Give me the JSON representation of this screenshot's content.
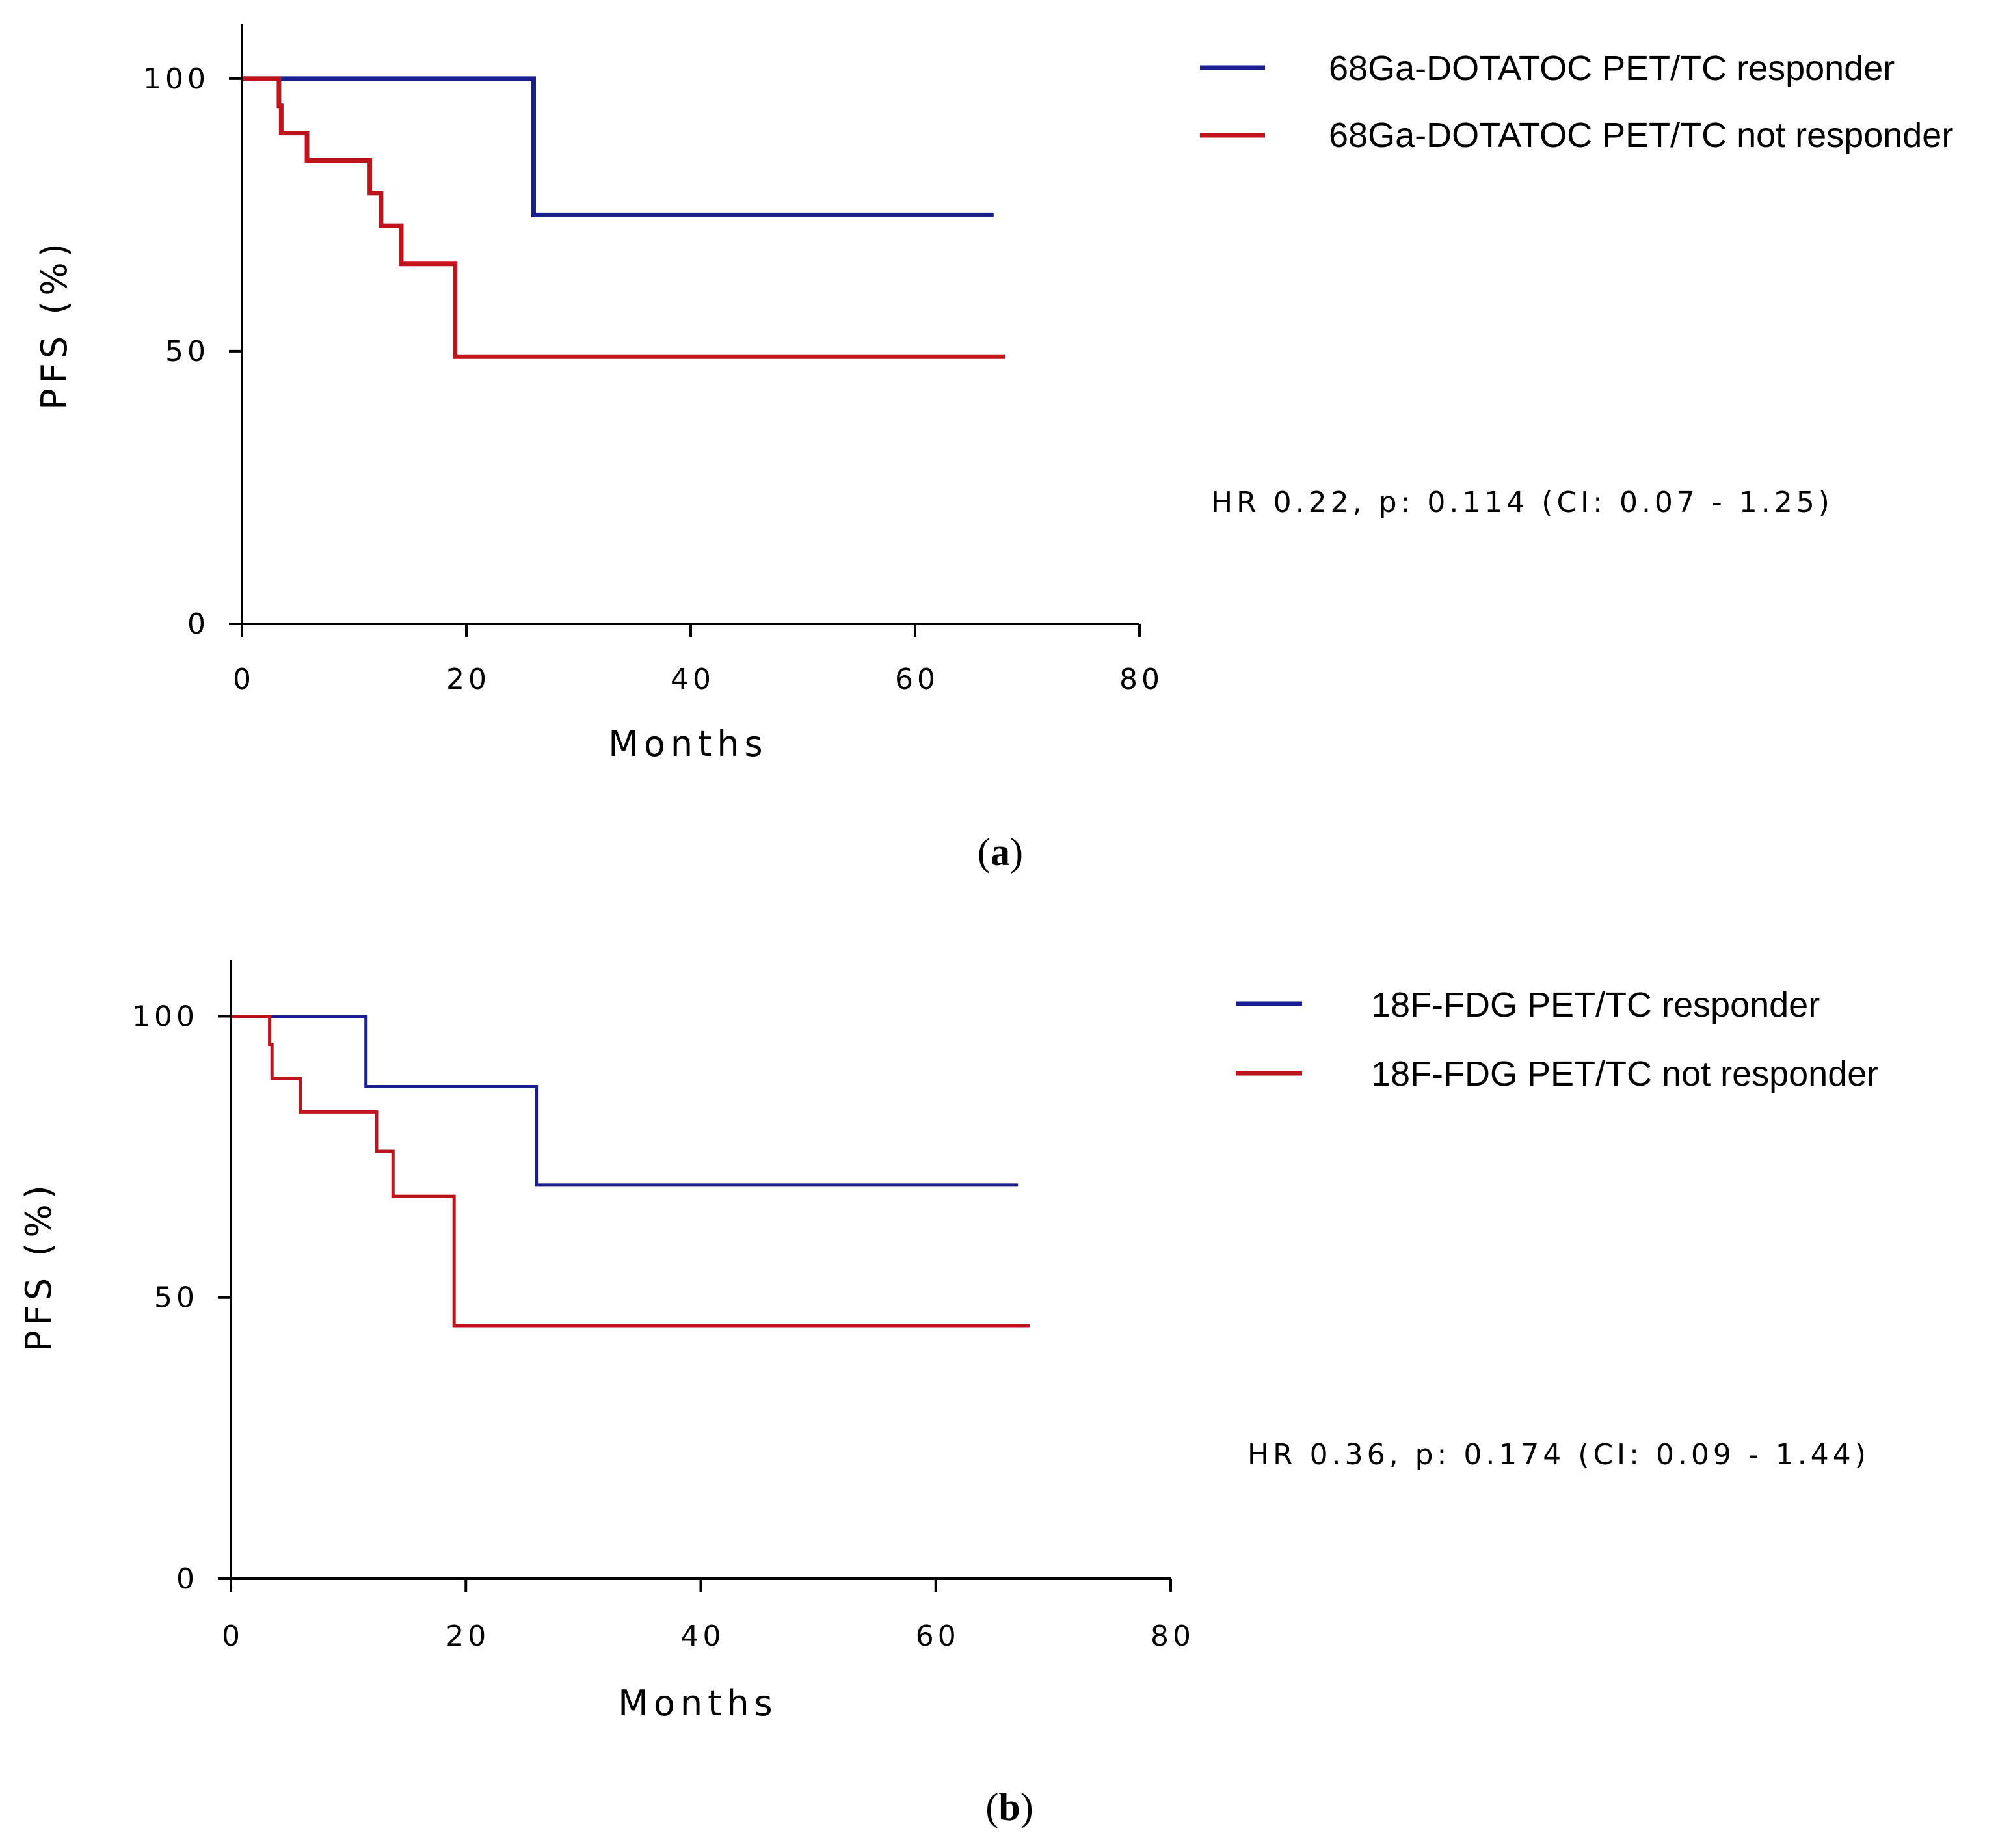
{
  "chart_data": [
    {
      "type": "line",
      "step": true,
      "panel_label": {
        "open": "(",
        "letter": "a",
        "close": ")"
      },
      "xlabel": "Months",
      "ylabel": "PFS (%)",
      "xlim": [
        0,
        80
      ],
      "ylim": [
        0,
        110
      ],
      "xticks": [
        0,
        20,
        40,
        60,
        80
      ],
      "yticks": [
        0,
        50,
        100
      ],
      "annotation": "HR 0.22, p: 0.114 (CI: 0.07 - 1.25)",
      "legend_position": "top-right",
      "series": [
        {
          "name": "68Ga-DOTATOC PET/TC responder",
          "color": "#1a1f8f",
          "x": [
            0,
            26,
            67
          ],
          "y": [
            100,
            75,
            75
          ]
        },
        {
          "name": "68Ga-DOTATOC PET/TC not responder",
          "color": "#c0141c",
          "x": [
            0,
            3.3,
            3.5,
            5.8,
            11.4,
            12.4,
            14.2,
            19,
            68
          ],
          "y": [
            100,
            95,
            90,
            85,
            79,
            73,
            66,
            49,
            49
          ]
        }
      ]
    },
    {
      "type": "line",
      "step": true,
      "panel_label": {
        "open": "(",
        "letter": "b",
        "close": ")"
      },
      "xlabel": "Months",
      "ylabel": "PFS (%)",
      "xlim": [
        0,
        80
      ],
      "ylim": [
        0,
        110
      ],
      "xticks": [
        0,
        20,
        40,
        60,
        80
      ],
      "yticks": [
        0,
        50,
        100
      ],
      "annotation": "HR 0.36, p: 0.174 (CI: 0.09 - 1.44)",
      "legend_position": "top-right",
      "series": [
        {
          "name": "18F-FDG PET/TC responder",
          "color": "#1a1f8f",
          "x": [
            0,
            11.5,
            26,
            67
          ],
          "y": [
            100,
            87.5,
            70,
            70
          ]
        },
        {
          "name": "18F-FDG PET/TC not responder",
          "color": "#c0141c",
          "x": [
            0,
            3.3,
            3.5,
            5.9,
            12.4,
            13.8,
            19,
            68
          ],
          "y": [
            100,
            95,
            89,
            83,
            76,
            68,
            45,
            45
          ]
        }
      ]
    }
  ]
}
